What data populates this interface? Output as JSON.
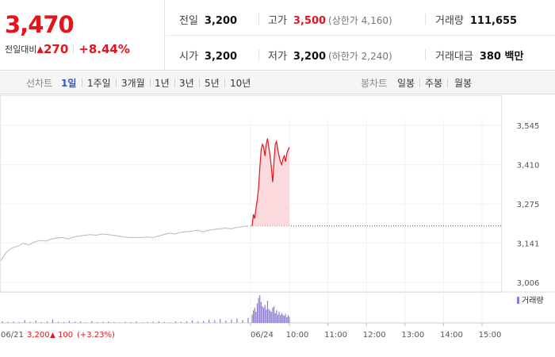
{
  "summary": {
    "current_price": "3,470",
    "change_label": "전일대비",
    "change_arrow": "▲",
    "change_amount": "270",
    "change_pct": "+8.44%",
    "prev_close_label": "전일",
    "prev_close": "3,200",
    "high_label": "고가",
    "high": "3,500",
    "upper_limit": "(상한가 4,160)",
    "volume_label": "거래량",
    "volume": "111,655",
    "open_label": "시가",
    "open": "3,200",
    "low_label": "저가",
    "low": "3,200",
    "lower_limit": "(하한가 2,240)",
    "value_label": "거래대금",
    "value": "380 백만"
  },
  "tabs": {
    "line_label": "선차트",
    "line_periods": [
      "1일",
      "1주일",
      "3개월",
      "1년",
      "3년",
      "5년",
      "10년"
    ],
    "active": "1일",
    "candle_label": "봉차트",
    "candle_periods": [
      "일봉",
      "주봉",
      "월봉"
    ]
  },
  "colors": {
    "up": "#e4141d",
    "fill": "#fbd9dc",
    "prev_line": "#b8b8b8",
    "volume": "#8f7ad3",
    "active_tab": "#2c56c9"
  },
  "chart_data": {
    "type": "line",
    "y_ticks": [
      "3,545",
      "3,410",
      "3,275",
      "3,141",
      "3,006"
    ],
    "ylim": [
      3006,
      3545
    ],
    "x_ticks": [
      "10:00",
      "11:00",
      "12:00",
      "13:00",
      "14:00",
      "15:00"
    ],
    "prev_day_label": "06/21",
    "prev_day_close": "3,200",
    "prev_day_change_arrow": "▲",
    "prev_day_change": "100",
    "prev_day_change_pct": "(+3.23%)",
    "today_label": "06/24",
    "reference_price": 3200,
    "volume_legend": "거래량",
    "prev_day_series": [
      3080,
      3110,
      3125,
      3130,
      3140,
      3135,
      3145,
      3150,
      3148,
      3155,
      3158,
      3160,
      3155,
      3162,
      3165,
      3168,
      3170,
      3168,
      3172,
      3170,
      3168,
      3165,
      3162,
      3160,
      3160,
      3160,
      3162,
      3160,
      3165,
      3170,
      3175,
      3172,
      3178,
      3180,
      3182,
      3185,
      3180,
      3185,
      3188,
      3190,
      3192,
      3190,
      3195,
      3198,
      3200
    ],
    "today_series": [
      3200,
      3240,
      3225,
      3260,
      3290,
      3330,
      3400,
      3460,
      3480,
      3470,
      3440,
      3480,
      3500,
      3470,
      3440,
      3400,
      3350,
      3420,
      3480,
      3490,
      3460,
      3440,
      3420,
      3410,
      3430,
      3440,
      3420,
      3450,
      3460,
      3470
    ],
    "prev_day_volume": [
      0.06,
      0.04,
      0.05,
      0.03,
      0.1,
      0.04,
      0.08,
      0.03,
      0.05,
      0.12,
      0.04,
      0.03,
      0.07,
      0.04,
      0.05,
      0.02,
      0.06,
      0.03,
      0.04,
      0.05,
      0.03,
      0.02,
      0.04,
      0.03,
      0.05,
      0.02,
      0.03,
      0.04,
      0.06,
      0.03,
      0.02,
      0.05,
      0.04,
      0.06,
      0.09,
      0.05,
      0.07,
      0.12,
      0.1,
      0.14,
      0.08,
      0.12,
      0.16,
      0.1,
      0.18
    ],
    "today_volume": [
      0.3,
      0.45,
      0.55,
      0.4,
      0.7,
      0.9,
      1.0,
      0.75,
      0.6,
      0.55,
      0.65,
      0.48,
      0.8,
      0.5,
      0.45,
      0.4,
      0.55,
      0.6,
      0.35,
      0.45,
      0.3,
      0.4,
      0.28,
      0.35,
      0.3,
      0.25,
      0.32,
      0.2,
      0.28,
      0.22
    ]
  }
}
